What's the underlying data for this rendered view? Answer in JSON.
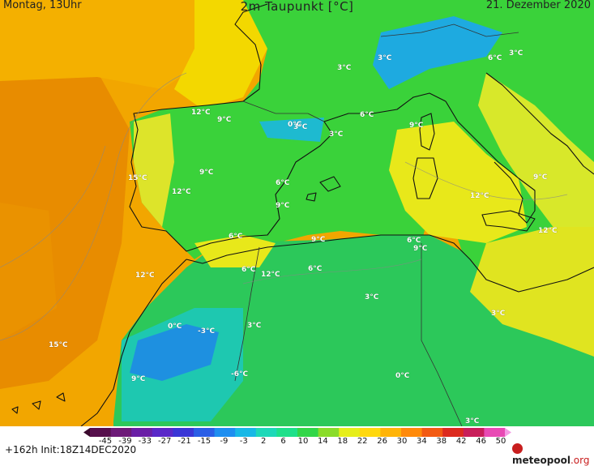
{
  "header": {
    "left": "Montag, 13Uhr",
    "title": "2m Taupunkt [°C]",
    "right": "21. Dezember 2020"
  },
  "map_labels": [
    "3°C",
    "3°C",
    "6°C",
    "3°C",
    "12°C",
    "9°C",
    "0°C",
    "3°C",
    "6°C",
    "9°C",
    "15°C",
    "12°C",
    "9°C",
    "6°C",
    "9°C",
    "12°C",
    "9°C",
    "6°C",
    "12°C",
    "9°C",
    "6°C",
    "9°C",
    "6°C",
    "12°C",
    "6°C",
    "3°C",
    "3°C",
    "12°C",
    "15°C",
    "0°C",
    "-3°C",
    "3°C",
    "9°C",
    "-6°C",
    "0°C",
    "3°C",
    "3°C"
  ],
  "colors": {
    "ocean": "#f0a000",
    "land": "#28d028",
    "coast": "#111111",
    "accent": "#c81e1e"
  },
  "footer": {
    "init": "+162h  Init:18Z14DEC2020",
    "scale_ticks": [
      "-45",
      "-39",
      "-33",
      "-27",
      "-21",
      "-15",
      "-9",
      "-3",
      "2",
      "6",
      "10",
      "14",
      "18",
      "22",
      "26",
      "30",
      "34",
      "38",
      "42",
      "46",
      "50"
    ],
    "scale_colors": [
      "#3b0a2e",
      "#560f4c",
      "#6d1a78",
      "#6a1fa6",
      "#5a28c8",
      "#3a36d6",
      "#2a5ee6",
      "#1e8ef0",
      "#18b8e6",
      "#1ed8b8",
      "#1ee08a",
      "#32d648",
      "#8adc2a",
      "#e6ee1a",
      "#ffd80e",
      "#ffb408",
      "#ff8a0a",
      "#f25a12",
      "#dc2a1e",
      "#c81e5a",
      "#e84ab4",
      "#f49ae4"
    ],
    "logo_name": "meteopool",
    "logo_tld": ".org"
  }
}
